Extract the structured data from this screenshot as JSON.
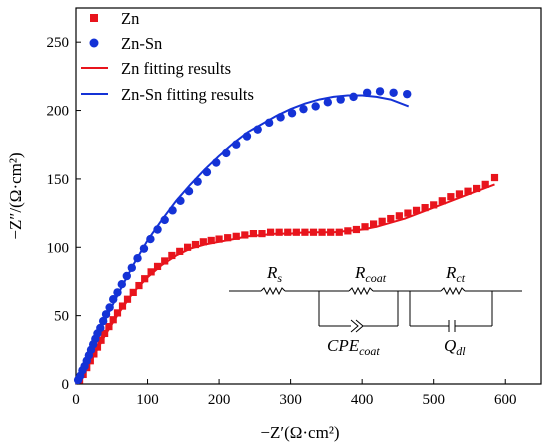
{
  "chart_data": {
    "type": "scatter",
    "xlabel": "−Z′(Ω·cm²)",
    "ylabel": "−Z″/(Ω·cm²)",
    "xlim": [
      0,
      650
    ],
    "ylim": [
      0,
      275
    ],
    "xticks": [
      0,
      100,
      200,
      300,
      400,
      500,
      600
    ],
    "yticks": [
      0,
      50,
      100,
      150,
      200,
      250
    ],
    "grid": false,
    "legend_position": "top-left",
    "series": [
      {
        "name": "Zn",
        "kind": "points",
        "marker": "square",
        "color": "#e8141c",
        "x": [
          5,
          10,
          15,
          20,
          25,
          30,
          35,
          40,
          46,
          52,
          58,
          65,
          72,
          80,
          88,
          96,
          105,
          114,
          124,
          134,
          145,
          156,
          167,
          178,
          189,
          200,
          212,
          224,
          236,
          248,
          260,
          272,
          284,
          296,
          308,
          320,
          332,
          344,
          356,
          368,
          380,
          392,
          404,
          416,
          428,
          440,
          452,
          464,
          476,
          488,
          500,
          512,
          524,
          536,
          548,
          560,
          572,
          585
        ],
        "y": [
          3,
          7,
          12,
          17,
          22,
          27,
          32,
          37,
          42,
          47,
          52,
          57,
          62,
          67,
          72,
          77,
          82,
          86,
          90,
          94,
          97,
          100,
          102,
          104,
          105,
          106,
          107,
          108,
          109,
          110,
          110,
          111,
          111,
          111,
          111,
          111,
          111,
          111,
          111,
          111,
          112,
          113,
          115,
          117,
          119,
          121,
          123,
          125,
          127,
          129,
          131,
          134,
          137,
          139,
          141,
          143,
          146,
          151
        ]
      },
      {
        "name": "Zn-Sn",
        "kind": "points",
        "marker": "circle",
        "color": "#1432d6",
        "x": [
          3,
          6,
          9,
          12,
          15,
          18,
          21,
          24,
          27,
          30,
          34,
          38,
          42,
          47,
          52,
          58,
          64,
          71,
          78,
          86,
          95,
          104,
          114,
          124,
          135,
          146,
          158,
          170,
          183,
          196,
          210,
          224,
          239,
          254,
          270,
          286,
          302,
          318,
          335,
          352,
          370,
          388,
          407,
          425,
          444,
          463
        ],
        "y": [
          3,
          6,
          10,
          13,
          17,
          21,
          25,
          29,
          33,
          37,
          41,
          46,
          51,
          56,
          62,
          67,
          73,
          79,
          85,
          92,
          99,
          106,
          113,
          120,
          127,
          134,
          141,
          148,
          155,
          162,
          169,
          175,
          181,
          186,
          191,
          195,
          198,
          201,
          203,
          206,
          208,
          210,
          213,
          214,
          213,
          212
        ]
      },
      {
        "name": "Zn fitting results",
        "kind": "line",
        "color": "#e8141c",
        "x": [
          0,
          20,
          40,
          60,
          80,
          100,
          120,
          140,
          160,
          180,
          200,
          220,
          240,
          260,
          280,
          300,
          320,
          340,
          360,
          380,
          400,
          420,
          440,
          460,
          480,
          500,
          520,
          540,
          560,
          585
        ],
        "y": [
          0,
          16,
          35,
          52,
          67,
          78,
          87,
          94,
          99,
          102,
          104,
          106,
          108,
          109,
          110,
          110,
          111,
          111,
          111,
          112,
          113,
          115,
          118,
          121,
          125,
          129,
          133,
          137,
          141,
          146
        ]
      },
      {
        "name": "Zn-Sn fitting results",
        "kind": "line",
        "color": "#1432d6",
        "x": [
          0,
          20,
          40,
          60,
          80,
          100,
          120,
          140,
          160,
          180,
          200,
          220,
          240,
          260,
          280,
          300,
          320,
          340,
          360,
          380,
          400,
          420,
          440,
          465
        ],
        "y": [
          0,
          24,
          46,
          67,
          87,
          105,
          120,
          134,
          146,
          157,
          167,
          176,
          184,
          190,
          196,
          201,
          205,
          208,
          210,
          211,
          211,
          210,
          208,
          203
        ]
      }
    ],
    "inset_circuit": {
      "labels": {
        "rs": "R",
        "rs_sub": "s",
        "rcoat": "R",
        "rcoat_sub": "coat",
        "rct": "R",
        "rct_sub": "ct",
        "cpe": "CPE",
        "cpe_sub": "coat",
        "qdl": "Q",
        "qdl_sub": "dl"
      }
    }
  }
}
